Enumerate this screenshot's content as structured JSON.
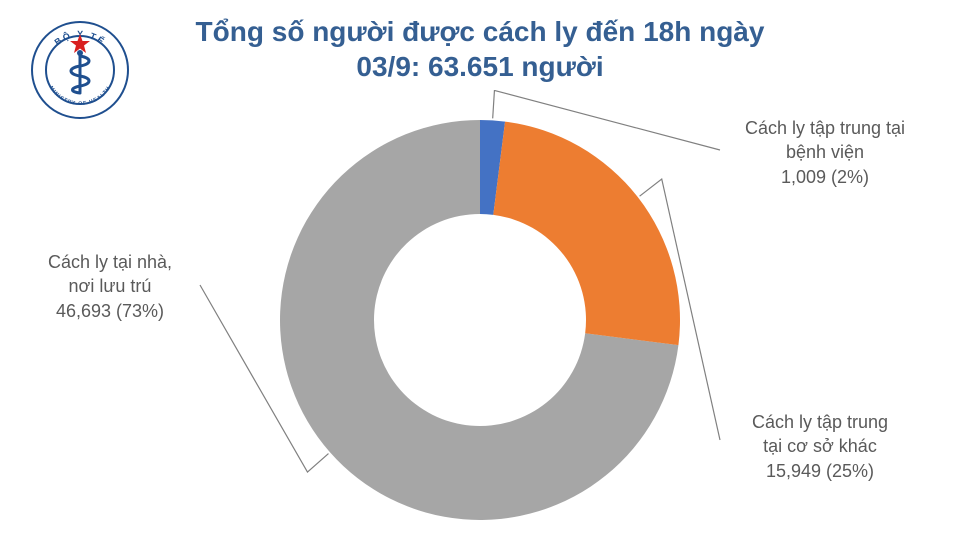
{
  "title_line1": "Tổng số người được cách ly đến 18h ngày",
  "title_line2": "03/9: 63.651 người",
  "title_color": "#355f92",
  "title_fontsize": 28,
  "logo": {
    "outer_text_top": "BỘ Y TẾ",
    "outer_text_bottom": "MINISTRY OF HEALTH",
    "ring_color": "#1f4f8f",
    "star_color": "#d91f1f",
    "snake_color": "#1f4f8f"
  },
  "chart": {
    "type": "donut",
    "background_color": "#ffffff",
    "inner_radius_ratio": 0.53,
    "slices": [
      {
        "key": "home",
        "label_line1": "Cách ly tại nhà,",
        "label_line2": "nơi lưu trú",
        "value_text": "46,693 (73%)",
        "value": 46693,
        "percent": 73,
        "color": "#a6a6a6",
        "start_angle": 97.2,
        "end_angle": 360
      },
      {
        "key": "hospital",
        "label_line1": "Cách ly tập trung tại",
        "label_line2": "bệnh viện",
        "value_text": "1,009 (2%)",
        "value": 1009,
        "percent": 2,
        "color": "#4472c4",
        "start_angle": 0,
        "end_angle": 7.2
      },
      {
        "key": "other",
        "label_line1": "Cách ly tập trung",
        "label_line2": "tại cơ sở khác",
        "value_text": "15,949 (25%)",
        "value": 15949,
        "percent": 25,
        "color": "#ed7d31",
        "start_angle": 7.2,
        "end_angle": 97.2
      }
    ],
    "leader_color": "#808080",
    "callout_color": "#5a5a5a",
    "callout_fontsize": 18
  }
}
